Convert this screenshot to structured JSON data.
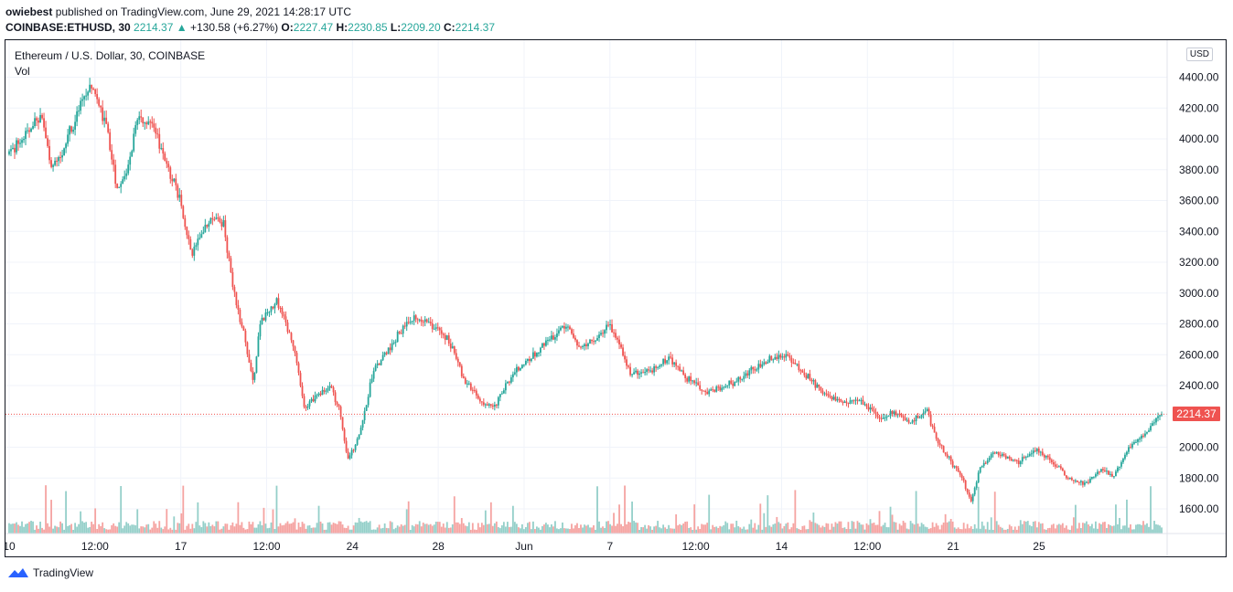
{
  "header": {
    "author": "owiebest",
    "published_text": "published on TradingView.com, June 29, 2021 14:28:17 UTC",
    "symbol": "COINBASE:ETHUSD, 30",
    "last_price": "2214.37",
    "change_arrow": "▲",
    "change": "+130.58 (+6.27%)",
    "o_label": "O:",
    "o_value": "2227.47",
    "h_label": "H:",
    "h_value": "2230.85",
    "l_label": "L:",
    "l_value": "2209.20",
    "c_label": "C:",
    "c_value": "2214.37"
  },
  "legend": {
    "title": "Ethereum / U.S. Dollar, 30, COINBASE",
    "volume_label": "Vol"
  },
  "currency_badge": "USD",
  "current_price_tag": "2214.37",
  "colors": {
    "up": "#26a69a",
    "down": "#ef5350",
    "up_volume": "#94cfc9",
    "down_volume": "#f5a3a1",
    "grid": "#f0f3fa",
    "price_line": "#ef5350"
  },
  "chart_data": {
    "type": "candlestick",
    "symbol": "COINBASE:ETHUSD",
    "interval": "30",
    "y_ticks": [
      1600,
      1800,
      2000,
      2200,
      2400,
      2600,
      2800,
      3000,
      3200,
      3400,
      3600,
      3800,
      4000,
      4200,
      4400
    ],
    "y_tick_labels": [
      "1600.00",
      "1800.00",
      "2000.00",
      "2200.00",
      "2400.00",
      "2600.00",
      "2800.00",
      "3000.00",
      "3200.00",
      "3400.00",
      "3600.00",
      "3800.00",
      "4000.00",
      "4200.00",
      "4400.00"
    ],
    "ylim": [
      1440,
      4640
    ],
    "x_tick_labels": [
      "10",
      "12:00",
      "17",
      "12:00",
      "24",
      "28",
      "Jun",
      "7",
      "12:00",
      "14",
      "12:00",
      "21",
      "25"
    ],
    "x_tick_index": [
      0,
      4,
      8,
      12,
      16,
      20,
      24,
      28,
      32,
      36,
      40,
      44,
      48
    ],
    "close_path": [
      {
        "i": 0,
        "p": 3900
      },
      {
        "i": 1.5,
        "p": 4150
      },
      {
        "i": 2,
        "p": 3780
      },
      {
        "i": 3,
        "p": 4100
      },
      {
        "i": 3.8,
        "p": 4350
      },
      {
        "i": 4.5,
        "p": 4100
      },
      {
        "i": 5,
        "p": 3700
      },
      {
        "i": 5.5,
        "p": 3750
      },
      {
        "i": 6,
        "p": 4150
      },
      {
        "i": 6.8,
        "p": 4050
      },
      {
        "i": 7.5,
        "p": 3780
      },
      {
        "i": 8,
        "p": 3600
      },
      {
        "i": 8.5,
        "p": 3250
      },
      {
        "i": 9.5,
        "p": 3500
      },
      {
        "i": 10,
        "p": 3450
      },
      {
        "i": 10.5,
        "p": 3000
      },
      {
        "i": 11,
        "p": 2700
      },
      {
        "i": 11.4,
        "p": 2400
      },
      {
        "i": 11.7,
        "p": 2800
      },
      {
        "i": 12.5,
        "p": 2950
      },
      {
        "i": 13.2,
        "p": 2700
      },
      {
        "i": 13.8,
        "p": 2250
      },
      {
        "i": 14.5,
        "p": 2350
      },
      {
        "i": 15,
        "p": 2400
      },
      {
        "i": 15.5,
        "p": 2200
      },
      {
        "i": 15.8,
        "p": 1900
      },
      {
        "i": 16.5,
        "p": 2150
      },
      {
        "i": 17,
        "p": 2500
      },
      {
        "i": 17.8,
        "p": 2650
      },
      {
        "i": 18.5,
        "p": 2800
      },
      {
        "i": 19,
        "p": 2850
      },
      {
        "i": 19.8,
        "p": 2780
      },
      {
        "i": 20.5,
        "p": 2700
      },
      {
        "i": 21.2,
        "p": 2450
      },
      {
        "i": 22,
        "p": 2300
      },
      {
        "i": 22.6,
        "p": 2250
      },
      {
        "i": 23,
        "p": 2350
      },
      {
        "i": 23.6,
        "p": 2500
      },
      {
        "i": 24.5,
        "p": 2600
      },
      {
        "i": 25.3,
        "p": 2700
      },
      {
        "i": 26,
        "p": 2800
      },
      {
        "i": 26.6,
        "p": 2650
      },
      {
        "i": 27.5,
        "p": 2720
      },
      {
        "i": 28,
        "p": 2800
      },
      {
        "i": 28.5,
        "p": 2650
      },
      {
        "i": 29,
        "p": 2480
      },
      {
        "i": 30,
        "p": 2500
      },
      {
        "i": 30.8,
        "p": 2580
      },
      {
        "i": 31.6,
        "p": 2450
      },
      {
        "i": 32.5,
        "p": 2350
      },
      {
        "i": 33.5,
        "p": 2400
      },
      {
        "i": 34.5,
        "p": 2480
      },
      {
        "i": 35.5,
        "p": 2580
      },
      {
        "i": 36.2,
        "p": 2600
      },
      {
        "i": 37,
        "p": 2500
      },
      {
        "i": 38,
        "p": 2350
      },
      {
        "i": 39,
        "p": 2300
      },
      {
        "i": 40,
        "p": 2280
      },
      {
        "i": 40.6,
        "p": 2200
      },
      {
        "i": 41.5,
        "p": 2220
      },
      {
        "i": 42,
        "p": 2150
      },
      {
        "i": 42.8,
        "p": 2250
      },
      {
        "i": 43.3,
        "p": 2050
      },
      {
        "i": 44,
        "p": 1900
      },
      {
        "i": 44.5,
        "p": 1800
      },
      {
        "i": 44.9,
        "p": 1650
      },
      {
        "i": 45.3,
        "p": 1850
      },
      {
        "i": 46,
        "p": 1970
      },
      {
        "i": 47,
        "p": 1900
      },
      {
        "i": 48,
        "p": 1980
      },
      {
        "i": 48.8,
        "p": 1900
      },
      {
        "i": 49.4,
        "p": 1800
      },
      {
        "i": 50.2,
        "p": 1760
      },
      {
        "i": 51,
        "p": 1850
      },
      {
        "i": 51.6,
        "p": 1820
      },
      {
        "i": 52.3,
        "p": 2000
      },
      {
        "i": 53.2,
        "p": 2120
      },
      {
        "i": 53.8,
        "p": 2214.37
      }
    ],
    "index_range": [
      0,
      53.8
    ]
  },
  "footer": {
    "brand": "TradingView"
  }
}
